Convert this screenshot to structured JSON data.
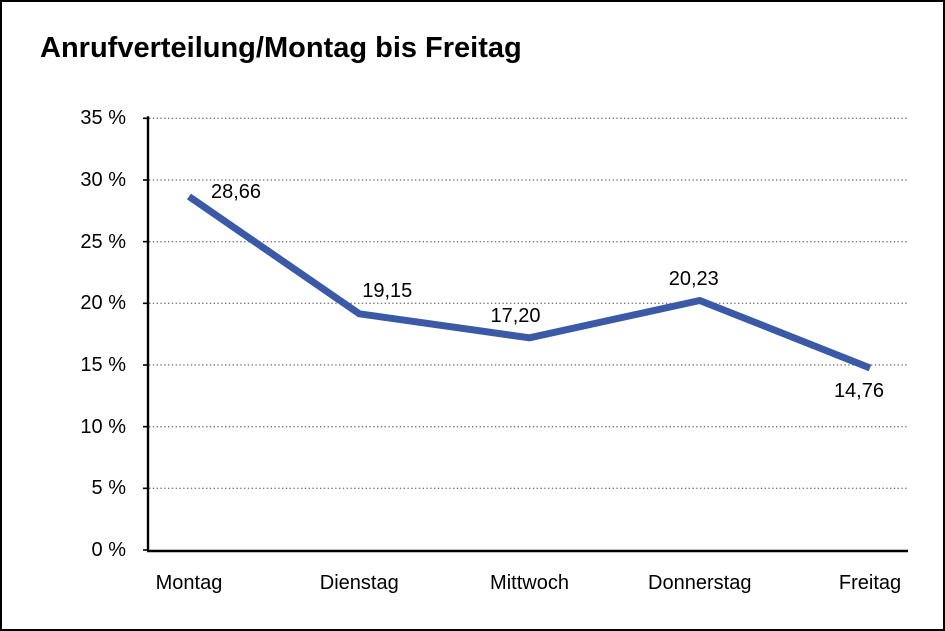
{
  "chart": {
    "title": "Anrufverteilung/Montag bis Freitag"
  },
  "chart_data": {
    "type": "line",
    "title": "Anrufverteilung/Montag bis Freitag",
    "categories": [
      "Montag",
      "Dienstag",
      "Mittwoch",
      "Donnerstag",
      "Freitag"
    ],
    "values": [
      28.66,
      19.15,
      17.2,
      20.23,
      14.76
    ],
    "value_labels": [
      "28,66",
      "19,15",
      "17,20",
      "20,23",
      "14,76"
    ],
    "xlabel": "",
    "ylabel": "",
    "ylim": [
      0,
      35
    ],
    "ytick_step": 5,
    "ytick_labels": [
      "0 %",
      "5 %",
      "10 %",
      "15 %",
      "20 %",
      "25 %",
      "30 %",
      "35 %"
    ],
    "grid": "horizontal-dotted",
    "legend": "none",
    "line_color": "#3A59A6",
    "axis_color": "#000000",
    "grid_color": "#7b7b7b",
    "text_color": "#000000",
    "background": "#ffffff"
  }
}
